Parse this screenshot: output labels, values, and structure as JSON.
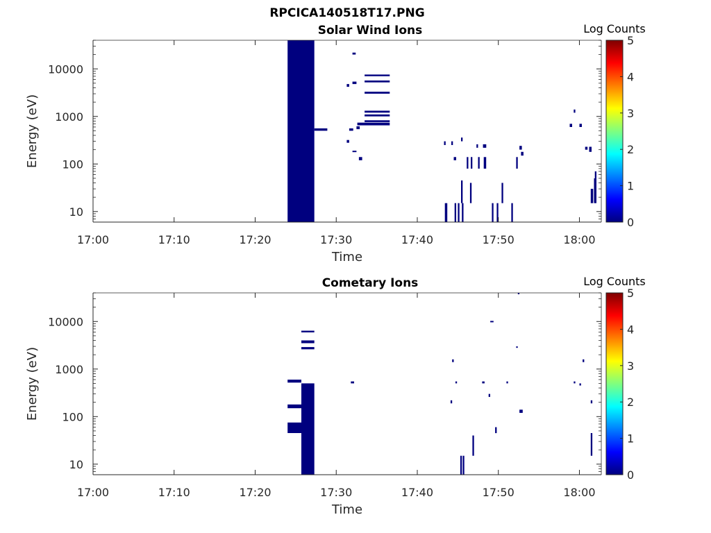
{
  "figure_title": "RPCICA140518T17.PNG",
  "colors": {
    "data": "#00007f",
    "axis": "#262626",
    "background": "#ffffff"
  },
  "colorbar": {
    "title": "Log Counts",
    "ticks": [
      "0",
      "1",
      "2",
      "3",
      "4",
      "5"
    ],
    "range": [
      0,
      5
    ],
    "colormap": "jet",
    "stops": [
      "#00007f",
      "#0000ff",
      "#007fff",
      "#00ffff",
      "#7fff7f",
      "#ffff00",
      "#ff7f00",
      "#ff0000",
      "#7f0000"
    ]
  },
  "chart_data": [
    {
      "type": "heatmap",
      "title": "Solar Wind Ions",
      "xlabel": "Time",
      "ylabel": "Energy (eV)",
      "xlim": [
        "17:00",
        "18:02.7"
      ],
      "ylim": [
        6,
        40000
      ],
      "yscale": "log",
      "xtick_labels": [
        "17:00",
        "17:10",
        "17:20",
        "17:30",
        "17:40",
        "17:50",
        "18:00"
      ],
      "ytick_labels": [
        "10",
        "100",
        "1000",
        "10000"
      ],
      "value_scale": "Log Counts",
      "note": "All visible bins are at the lowest colour (~0 Log Counts, dark blue).",
      "cells_columns": [
        "t0_min",
        "t1_min",
        "e_lo_eV",
        "e_hi_eV"
      ],
      "cells": [
        [
          24.0,
          27.3,
          6,
          40000
        ],
        [
          27.3,
          28.9,
          500,
          560
        ],
        [
          32.0,
          32.4,
          20000,
          22000
        ],
        [
          31.3,
          31.6,
          4200,
          4800
        ],
        [
          32.0,
          32.5,
          4800,
          5400
        ],
        [
          33.5,
          36.6,
          7000,
          7600
        ],
        [
          33.5,
          36.6,
          5200,
          5700
        ],
        [
          33.5,
          36.6,
          3000,
          3300
        ],
        [
          33.5,
          36.6,
          1200,
          1320
        ],
        [
          33.5,
          36.6,
          1000,
          1100
        ],
        [
          33.5,
          36.6,
          760,
          830
        ],
        [
          32.6,
          36.6,
          650,
          740
        ],
        [
          32.5,
          32.9,
          540,
          620
        ],
        [
          31.6,
          32.1,
          500,
          560
        ],
        [
          31.3,
          31.6,
          280,
          320
        ],
        [
          32.0,
          32.5,
          180,
          190
        ],
        [
          32.8,
          33.2,
          120,
          140
        ],
        [
          43.4,
          43.7,
          6,
          15
        ],
        [
          44.6,
          44.8,
          6,
          15
        ],
        [
          45.0,
          45.2,
          6,
          15
        ],
        [
          45.5,
          45.7,
          6,
          15
        ],
        [
          45.4,
          45.6,
          15,
          45
        ],
        [
          46.5,
          46.7,
          15,
          40
        ],
        [
          49.2,
          49.4,
          6,
          15
        ],
        [
          49.8,
          50.0,
          6,
          15
        ],
        [
          51.6,
          51.8,
          6,
          15
        ],
        [
          50.4,
          50.6,
          15,
          40
        ],
        [
          44.5,
          44.8,
          120,
          140
        ],
        [
          46.1,
          46.3,
          80,
          140
        ],
        [
          46.6,
          46.8,
          80,
          140
        ],
        [
          47.5,
          47.7,
          80,
          140
        ],
        [
          48.2,
          48.5,
          80,
          140
        ],
        [
          52.2,
          52.4,
          80,
          140
        ],
        [
          43.3,
          43.5,
          250,
          300
        ],
        [
          44.2,
          44.4,
          250,
          300
        ],
        [
          45.4,
          45.6,
          300,
          360
        ],
        [
          47.3,
          47.5,
          220,
          260
        ],
        [
          48.1,
          48.5,
          220,
          260
        ],
        [
          52.6,
          52.9,
          200,
          240
        ],
        [
          52.8,
          53.1,
          150,
          180
        ],
        [
          58.8,
          59.1,
          600,
          700
        ],
        [
          59.3,
          59.5,
          1200,
          1400
        ],
        [
          60.0,
          60.3,
          600,
          700
        ],
        [
          60.7,
          61.0,
          200,
          230
        ],
        [
          61.2,
          61.5,
          180,
          230
        ],
        [
          61.4,
          61.7,
          15,
          30
        ],
        [
          61.8,
          62.1,
          15,
          50
        ],
        [
          61.9,
          62.1,
          50,
          70
        ]
      ]
    },
    {
      "type": "heatmap",
      "title": "Cometary Ions",
      "xlabel": "Time",
      "ylabel": "Energy (eV)",
      "xlim": [
        "17:00",
        "18:02.7"
      ],
      "ylim": [
        6,
        40000
      ],
      "yscale": "log",
      "xtick_labels": [
        "17:00",
        "17:10",
        "17:20",
        "17:30",
        "17:40",
        "17:50",
        "18:00"
      ],
      "ytick_labels": [
        "10",
        "100",
        "1000",
        "10000"
      ],
      "value_scale": "Log Counts",
      "note": "All visible bins are at the lowest colour (~0 Log Counts, dark blue).",
      "cells_columns": [
        "t0_min",
        "t1_min",
        "e_lo_eV",
        "e_hi_eV"
      ],
      "cells": [
        [
          25.7,
          27.3,
          6,
          450
        ],
        [
          24.0,
          25.7,
          520,
          600
        ],
        [
          25.7,
          27.3,
          450,
          500
        ],
        [
          24.0,
          25.7,
          150,
          180
        ],
        [
          24.0,
          25.7,
          45,
          75
        ],
        [
          25.7,
          27.3,
          5900,
          6400
        ],
        [
          25.7,
          27.3,
          3500,
          4000
        ],
        [
          25.7,
          27.3,
          2600,
          2900
        ],
        [
          31.8,
          32.2,
          500,
          550
        ],
        [
          45.3,
          45.5,
          6,
          15
        ],
        [
          45.6,
          45.8,
          6,
          15
        ],
        [
          46.8,
          47.0,
          15,
          40
        ],
        [
          49.0,
          49.4,
          9800,
          10300
        ],
        [
          52.4,
          52.6,
          38000,
          40000
        ],
        [
          52.2,
          52.4,
          2800,
          3000
        ],
        [
          44.3,
          44.5,
          1400,
          1600
        ],
        [
          44.7,
          44.9,
          500,
          550
        ],
        [
          48.0,
          48.3,
          500,
          550
        ],
        [
          51.0,
          51.2,
          500,
          550
        ],
        [
          59.3,
          59.5,
          500,
          550
        ],
        [
          60.4,
          60.6,
          1400,
          1600
        ],
        [
          60.0,
          60.2,
          450,
          500
        ],
        [
          44.1,
          44.3,
          190,
          220
        ],
        [
          48.8,
          49.0,
          260,
          300
        ],
        [
          52.6,
          53.0,
          120,
          140
        ],
        [
          49.6,
          49.8,
          45,
          60
        ],
        [
          61.4,
          61.6,
          15,
          45
        ],
        [
          61.4,
          61.6,
          190,
          220
        ]
      ]
    }
  ]
}
